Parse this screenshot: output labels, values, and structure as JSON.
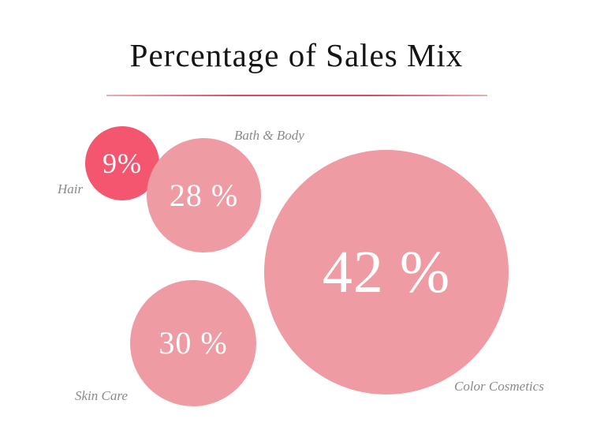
{
  "page": {
    "background_color": "#ffffff"
  },
  "header": {
    "title": "Percentage of Sales Mix",
    "divider_color": "#d84b5e"
  },
  "chart_data": {
    "type": "pie",
    "variant": "proportional-bubble",
    "title": "Percentage of Sales Mix",
    "categories": [
      "Hair",
      "Bath & Body",
      "Skin Care",
      "Color Cosmetics"
    ],
    "values": [
      9,
      28,
      30,
      42
    ],
    "value_labels": [
      "9%",
      "28 %",
      "30 %",
      "42 %"
    ],
    "unit": "percent",
    "colors": [
      "#f4566f",
      "#ef9ba3",
      "#ef9ba3",
      "#ef9ba3"
    ],
    "value_text_color": "#ffffff",
    "category_label_color": "#8a8a8a",
    "legend_position": "none",
    "grid": false
  }
}
